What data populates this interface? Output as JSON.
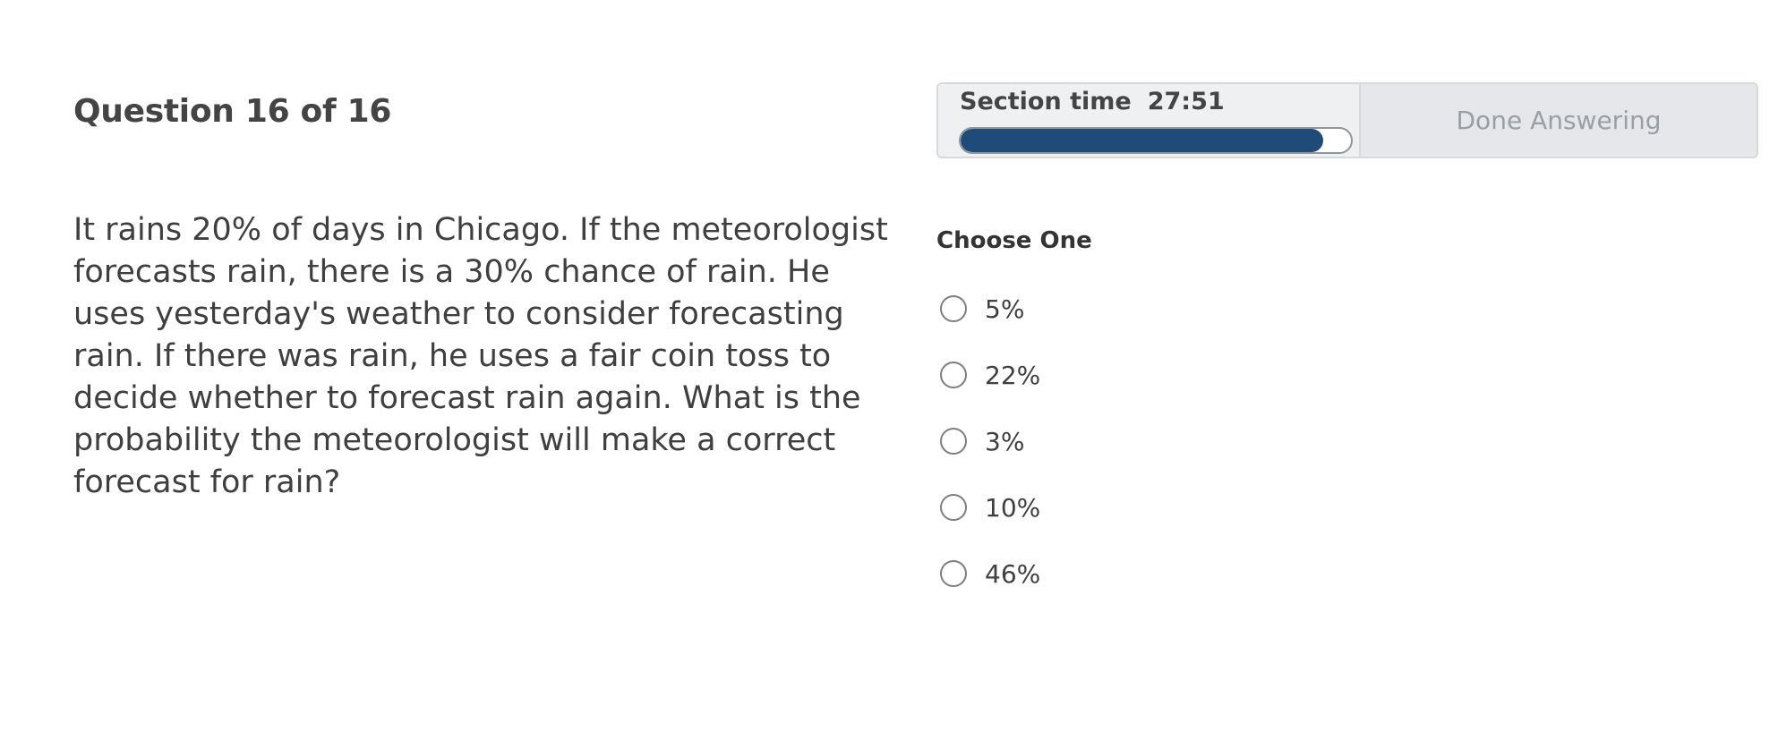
{
  "header": {
    "question_label": "Question 16 of 16"
  },
  "question": {
    "text": "It rains 20% of days in Chicago. If the meteorologist forecasts rain, there is a 30% chance of rain. He uses yesterday's weather to consider forecasting rain. If there was rain, he uses a fair coin toss to decide whether to forecast rain again. What is the probability the meteorologist will make a correct forecast for rain?"
  },
  "timer": {
    "label": "Section time",
    "value": "27:51",
    "progress_fraction": 0.93,
    "bar_color": "#1f4b78"
  },
  "actions": {
    "done_label": "Done Answering"
  },
  "answers": {
    "prompt": "Choose One",
    "options": [
      {
        "label": "5%"
      },
      {
        "label": "22%"
      },
      {
        "label": "3%"
      },
      {
        "label": "10%"
      },
      {
        "label": "46%"
      }
    ]
  }
}
